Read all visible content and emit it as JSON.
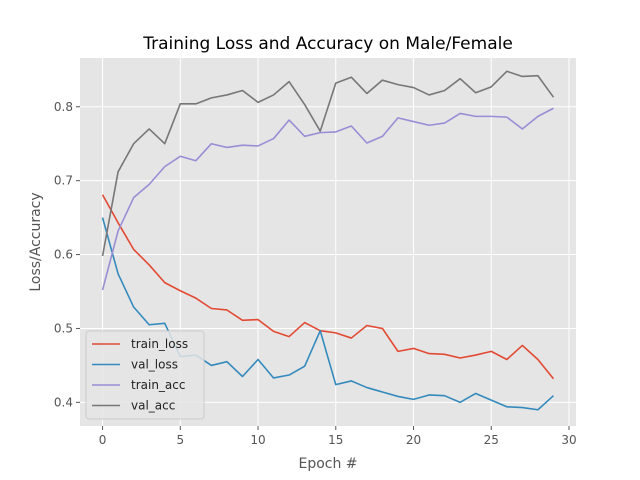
{
  "chart_data": {
    "type": "line",
    "title": "Training Loss and Accuracy on Male/Female",
    "xlabel": "Epoch #",
    "ylabel": "Loss/Accuracy",
    "xlim": [
      -1.45,
      30.45
    ],
    "ylim": [
      0.368,
      0.866
    ],
    "xticks": [
      0,
      5,
      10,
      15,
      20,
      25,
      30
    ],
    "yticks": [
      0.4,
      0.5,
      0.6,
      0.7,
      0.8
    ],
    "grid": true,
    "legend_position": "lower-left",
    "x": [
      0,
      1,
      2,
      3,
      4,
      5,
      6,
      7,
      8,
      9,
      10,
      11,
      12,
      13,
      14,
      15,
      16,
      17,
      18,
      19,
      20,
      21,
      22,
      23,
      24,
      25,
      26,
      27,
      28,
      29
    ],
    "series": [
      {
        "name": "train_loss",
        "color": "#e24a33",
        "values": [
          0.681,
          0.643,
          0.607,
          0.586,
          0.562,
          0.551,
          0.541,
          0.527,
          0.525,
          0.511,
          0.512,
          0.496,
          0.489,
          0.508,
          0.497,
          0.494,
          0.487,
          0.504,
          0.5,
          0.469,
          0.473,
          0.466,
          0.465,
          0.46,
          0.464,
          0.469,
          0.458,
          0.477,
          0.458,
          0.432
        ]
      },
      {
        "name": "val_loss",
        "color": "#348abd",
        "values": [
          0.65,
          0.574,
          0.529,
          0.505,
          0.507,
          0.462,
          0.464,
          0.45,
          0.455,
          0.435,
          0.458,
          0.433,
          0.437,
          0.449,
          0.497,
          0.424,
          0.429,
          0.42,
          0.414,
          0.408,
          0.404,
          0.41,
          0.409,
          0.4,
          0.412,
          0.403,
          0.394,
          0.393,
          0.39,
          0.409
        ]
      },
      {
        "name": "train_acc",
        "color": "#988ed5",
        "values": [
          0.552,
          0.632,
          0.677,
          0.695,
          0.719,
          0.733,
          0.727,
          0.75,
          0.745,
          0.748,
          0.747,
          0.757,
          0.782,
          0.76,
          0.765,
          0.766,
          0.774,
          0.751,
          0.76,
          0.785,
          0.78,
          0.775,
          0.778,
          0.791,
          0.787,
          0.787,
          0.786,
          0.77,
          0.787,
          0.798
        ]
      },
      {
        "name": "val_acc",
        "color": "#777777",
        "values": [
          0.598,
          0.712,
          0.75,
          0.77,
          0.75,
          0.804,
          0.804,
          0.812,
          0.816,
          0.822,
          0.806,
          0.816,
          0.834,
          0.803,
          0.767,
          0.832,
          0.84,
          0.818,
          0.836,
          0.83,
          0.826,
          0.816,
          0.822,
          0.838,
          0.819,
          0.827,
          0.848,
          0.841,
          0.842,
          0.813
        ]
      }
    ]
  }
}
